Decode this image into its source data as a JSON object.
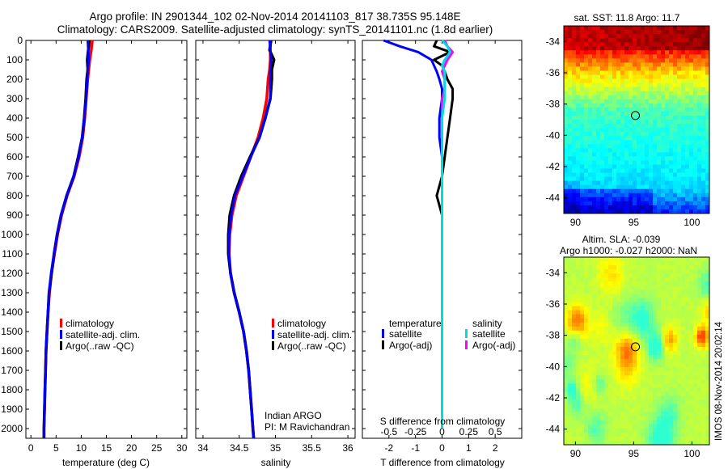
{
  "title_line1": "Argo profile: IN 2901344_102 02-Nov-2014 20141103_817 38.735S 95.148E",
  "title_line2": "Climatology: CARS2009. Satellite-adjusted climatology: synTS_20141101.nc (1.8d earlier)",
  "timestamp": "IMOS 08-Nov-2014 20:02:14",
  "colors": {
    "climatology": "#ff0000",
    "satellite": "#0000ff",
    "argo": "#000000",
    "sat_sal": "#00dddd",
    "argo_sal": "#ff00ff"
  },
  "chart_data": [
    {
      "type": "line",
      "panel": "temperature",
      "xlabel": "temperature (deg C)",
      "ylabel": "",
      "xlim": [
        -1,
        31
      ],
      "ylim": [
        2050,
        0
      ],
      "xticks": [
        "0",
        "5",
        "10",
        "15",
        "20",
        "25",
        "30"
      ],
      "xtick_values": [
        0,
        5,
        10,
        15,
        20,
        25,
        30
      ],
      "yticks": [
        "0",
        "100",
        "200",
        "300",
        "400",
        "500",
        "600",
        "700",
        "800",
        "900",
        "1000",
        "1100",
        "1200",
        "1300",
        "1400",
        "1500",
        "1600",
        "1700",
        "1800",
        "1900",
        "2000"
      ],
      "ytick_values": [
        0,
        100,
        200,
        300,
        400,
        500,
        600,
        700,
        800,
        900,
        1000,
        1100,
        1200,
        1300,
        1400,
        1500,
        1600,
        1700,
        1800,
        1900,
        2000
      ],
      "legend": [
        "climatology",
        "satellite-adj. clim.",
        "Argo(..raw -QC)"
      ],
      "depth": [
        0,
        50,
        100,
        150,
        200,
        300,
        400,
        500,
        600,
        700,
        800,
        900,
        1000,
        1100,
        1200,
        1300,
        1400,
        1500,
        1600,
        1700,
        1800,
        1900,
        2000,
        2050
      ],
      "series": [
        {
          "name": "climatology",
          "values": [
            12.2,
            12.0,
            11.7,
            11.5,
            11.3,
            11.0,
            10.7,
            10.3,
            9.6,
            8.6,
            7.2,
            6.1,
            5.3,
            4.7,
            4.1,
            3.7,
            3.4,
            3.2,
            3.0,
            2.9,
            2.8,
            2.7,
            2.6,
            2.6
          ]
        },
        {
          "name": "Argo(..raw -QC)",
          "values": [
            11.6,
            11.4,
            11.2,
            11.3,
            11.1,
            10.9,
            10.6,
            10.2,
            9.4,
            8.5,
            7.1,
            6.0,
            5.2,
            4.6,
            4.1,
            3.6,
            3.4,
            3.2,
            3.0,
            2.9,
            2.8,
            2.7,
            2.6,
            2.6
          ]
        },
        {
          "name": "satellite-adj. clim.",
          "values": [
            11.3,
            11.4,
            11.5,
            11.3,
            11.2,
            11.0,
            10.6,
            10.2,
            9.5,
            8.5,
            7.1,
            6.0,
            5.2,
            4.6,
            4.0,
            3.6,
            3.4,
            3.2,
            3.0,
            2.9,
            2.8,
            2.7,
            2.6,
            2.6
          ]
        }
      ]
    },
    {
      "type": "line",
      "panel": "salinity",
      "xlabel": "salinity",
      "xlim": [
        33.9,
        36.1
      ],
      "ylim": [
        2050,
        0
      ],
      "xticks": [
        "34",
        "34.5",
        "35",
        "35.5",
        "36"
      ],
      "xtick_values": [
        34,
        34.5,
        35,
        35.5,
        36
      ],
      "legend": [
        "climatology",
        "satellite-adj. clim.",
        "Argo(..raw -QC)"
      ],
      "annotation": [
        "Indian ARGO",
        "PI: M Ravichandran"
      ],
      "depth": [
        0,
        50,
        100,
        150,
        200,
        300,
        400,
        500,
        600,
        700,
        800,
        900,
        1000,
        1100,
        1200,
        1300,
        1400,
        1500,
        1600,
        1700,
        1800,
        1900,
        2000,
        2050
      ],
      "series": [
        {
          "name": "climatology",
          "values": [
            34.93,
            34.93,
            34.93,
            34.92,
            34.9,
            34.88,
            34.83,
            34.76,
            34.66,
            34.56,
            34.46,
            34.4,
            34.37,
            34.36,
            34.38,
            34.43,
            34.5,
            34.56,
            34.6,
            34.63,
            34.65,
            34.67,
            34.69,
            34.7
          ]
        },
        {
          "name": "Argo(..raw -QC)",
          "values": [
            34.94,
            34.92,
            34.98,
            34.95,
            34.95,
            34.93,
            34.86,
            34.78,
            34.65,
            34.53,
            34.43,
            34.37,
            34.35,
            34.35,
            34.38,
            34.43,
            34.5,
            34.56,
            34.6,
            34.63,
            34.65,
            34.67,
            34.69,
            34.7
          ]
        },
        {
          "name": "satellite-adj. clim.",
          "values": [
            34.92,
            34.93,
            34.94,
            34.93,
            34.93,
            34.93,
            34.86,
            34.78,
            34.66,
            34.55,
            34.44,
            34.39,
            34.36,
            34.36,
            34.38,
            34.43,
            34.5,
            34.56,
            34.6,
            34.63,
            34.65,
            34.67,
            34.69,
            34.7
          ]
        }
      ]
    },
    {
      "type": "line",
      "panel": "difference",
      "xlabel": "T difference from climatology",
      "xlabel_top": "S difference from climatology",
      "xlim": [
        -3,
        3
      ],
      "ylim": [
        2050,
        0
      ],
      "xticks": [
        "-2",
        "-1",
        "0",
        "1",
        "2"
      ],
      "xtick_values": [
        -2,
        -1,
        0,
        1,
        2
      ],
      "sticks": [
        "-0.5",
        "-0.25",
        "0",
        "0.25",
        "0.5"
      ],
      "legend_temperature": [
        "temperature",
        "satellite",
        "Argo(-adj)"
      ],
      "legend_salinity": [
        "salinity",
        "satellite",
        "Argo(-adj)"
      ],
      "depth": [
        0,
        30,
        60,
        100,
        130,
        160,
        200,
        250,
        300,
        400,
        500,
        600,
        700,
        800,
        850,
        900,
        1000,
        1200,
        1500,
        1800,
        2000
      ],
      "series": [
        {
          "name": "satellite",
          "values": [
            -2.2,
            -1.6,
            -0.9,
            -0.4,
            -0.3,
            -0.2,
            -0.1,
            0.0,
            0.0,
            -0.1,
            -0.1,
            0.0,
            0.0,
            0.0,
            0.0,
            0.0,
            0.0,
            0.0,
            0.0,
            0.0,
            0.0
          ]
        },
        {
          "name": "Argo(-adj)",
          "values": [
            -0.2,
            -0.3,
            0.3,
            -0.3,
            0.0,
            0.1,
            0.2,
            0.4,
            0.4,
            0.3,
            0.2,
            0.1,
            0.0,
            -0.2,
            -0.1,
            0.0,
            0.0,
            0.0,
            0.0,
            0.0,
            0.0
          ]
        },
        {
          "name": "salinity satellite",
          "values": [
            0.0,
            0.2,
            0.3,
            0.1,
            0.0,
            0.1,
            0.1,
            0.1,
            0.1,
            0.0,
            0.0,
            0.0,
            0.0,
            0.0,
            0.0,
            0.0,
            0.0,
            0.0,
            0.0,
            0.0,
            0.0
          ]
        },
        {
          "name": "salinity Argo(-adj)",
          "values": [
            0.1,
            0.2,
            0.4,
            0.2,
            0.1,
            0.0,
            0.1,
            0.1,
            0.0,
            0.0,
            0.0,
            0.0,
            0.0,
            0.0,
            0.0,
            0.0,
            0.0,
            0.0,
            0.0,
            0.0,
            0.0
          ]
        }
      ]
    },
    {
      "type": "heatmap",
      "panel": "sst",
      "title": "sat. SST: 11.8  Argo: 11.7",
      "xlim": [
        89,
        101.5
      ],
      "ylim": [
        -45,
        -33
      ],
      "xticks": [
        "90",
        "95",
        "100"
      ],
      "yticks": [
        "-34",
        "-36",
        "-38",
        "-40",
        "-42",
        "-44"
      ],
      "marker": [
        95.148,
        -38.735
      ]
    },
    {
      "type": "heatmap",
      "panel": "sla",
      "title_line1": "Altim. SLA: -0.039",
      "title_line2": "Argo h1000: -0.027  h2000: NaN",
      "xlim": [
        89,
        101.5
      ],
      "ylim": [
        -45,
        -33
      ],
      "xticks": [
        "90",
        "95",
        "100"
      ],
      "yticks": [
        "-34",
        "-36",
        "-38",
        "-40",
        "-42",
        "-44"
      ],
      "marker": [
        95.148,
        -38.735
      ]
    }
  ]
}
